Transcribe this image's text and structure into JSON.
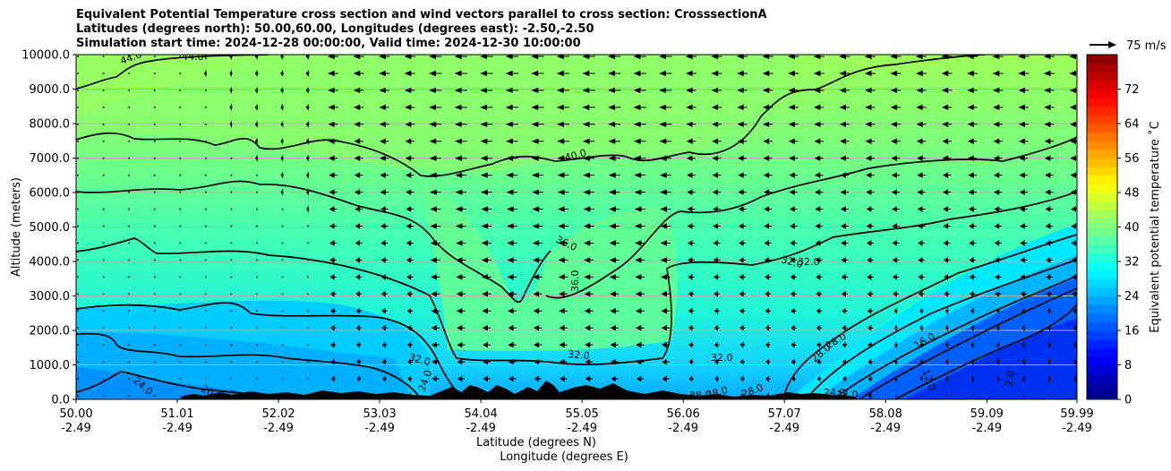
{
  "chart_data": {
    "type": "heatmap",
    "title_lines": [
      "Equivalent Potential Temperature cross section and wind vectors parallel to cross section: CrosssectionA",
      "Latitudes (degrees north): 50.00,60.00, Longitudes (degrees east): -2.50,-2.50",
      "Simulation start time: 2024-12-28 00:00:00, Valid time: 2024-12-30 10:00:00"
    ],
    "ylabel": "Altitude (meters)",
    "xlabel_1": "Latitude (degrees N)",
    "xlabel_2": "Longitude (degrees E)",
    "xlim": [
      50.0,
      59.99
    ],
    "ylim": [
      0,
      10000
    ],
    "x_ticks": [
      {
        "lat": "50.00",
        "lon": "-2.49"
      },
      {
        "lat": "51.01",
        "lon": "-2.49"
      },
      {
        "lat": "52.02",
        "lon": "-2.49"
      },
      {
        "lat": "53.03",
        "lon": "-2.49"
      },
      {
        "lat": "54.04",
        "lon": "-2.49"
      },
      {
        "lat": "55.05",
        "lon": "-2.49"
      },
      {
        "lat": "56.06",
        "lon": "-2.49"
      },
      {
        "lat": "57.07",
        "lon": "-2.49"
      },
      {
        "lat": "58.08",
        "lon": "-2.49"
      },
      {
        "lat": "59.09",
        "lon": "-2.49"
      },
      {
        "lat": "59.99",
        "lon": "-2.49"
      }
    ],
    "y_ticks": [
      "0.0",
      "1000.0",
      "2000.0",
      "3000.0",
      "4000.0",
      "5000.0",
      "6000.0",
      "7000.0",
      "8000.0",
      "9000.0",
      "10000.0"
    ],
    "y_tick_values": [
      0,
      1000,
      2000,
      3000,
      4000,
      5000,
      6000,
      7000,
      8000,
      9000,
      10000
    ],
    "grid": "horizontal",
    "colorbar": {
      "label": "Equivalent potential temperature ˚C",
      "range": [
        0,
        80
      ],
      "ticks": [
        "0",
        "8",
        "16",
        "24",
        "32",
        "40",
        "48",
        "56",
        "64",
        "72"
      ],
      "tick_values": [
        0,
        8,
        16,
        24,
        32,
        40,
        48,
        56,
        64,
        72
      ],
      "colormap": "jet"
    },
    "quiver_key": {
      "label": "75 m/s",
      "speed": 75
    },
    "wind_direction": "westward (toward lower latitude)",
    "contour_levels_labeled": [
      "44.0",
      "44.0",
      "40.0",
      "36.0",
      "36.0",
      "32.0",
      "32.0",
      "32.0",
      "32.0",
      "32.0",
      "28.0",
      "28.0",
      "28.0",
      "28.0",
      "28.0",
      "28.0",
      "24.0",
      "24.0",
      "24.0",
      "20.0",
      "20.0",
      "16.0",
      "12.0",
      "12.0",
      "2.0"
    ]
  },
  "colors": {
    "contour": "#000000",
    "terrain": "#000000",
    "grid": "#b0b0b0"
  }
}
